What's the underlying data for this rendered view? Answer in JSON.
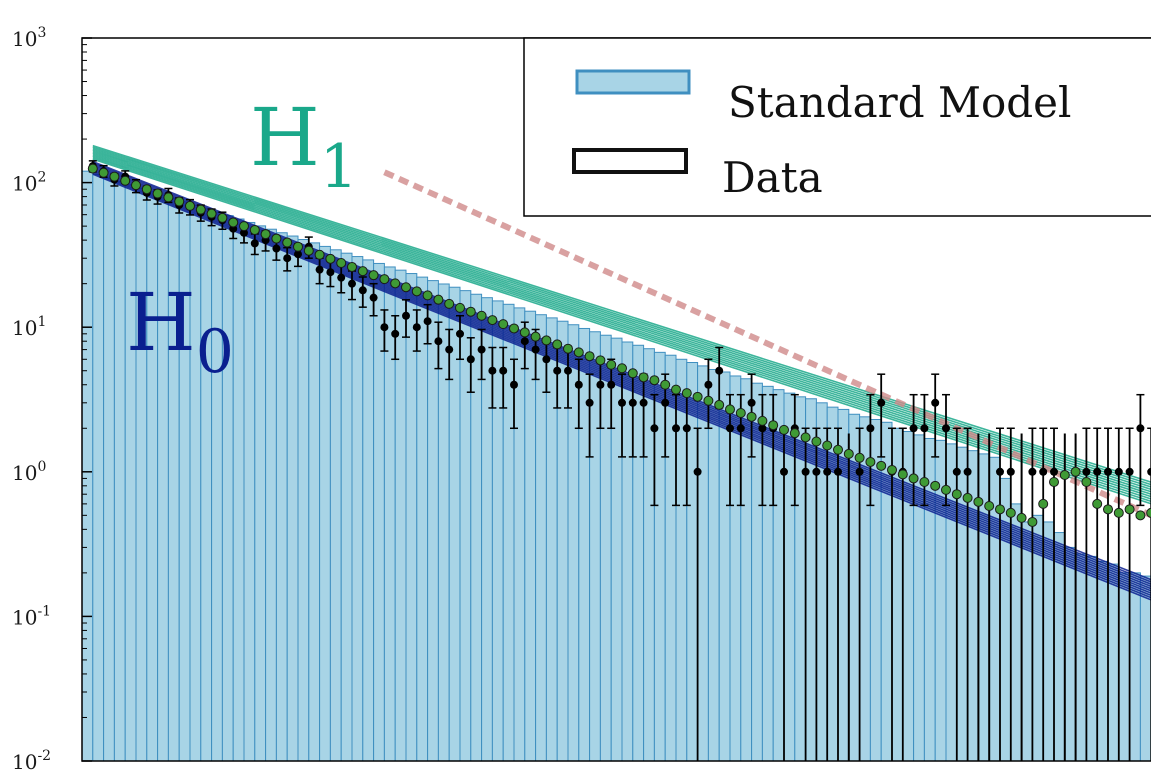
{
  "chart_data": {
    "type": "bar",
    "title": "",
    "xlabel": "",
    "ylabel": "",
    "yscale": "log",
    "ylim": [
      0.01,
      1000
    ],
    "xlim": [
      0,
      100
    ],
    "yticks": [
      {
        "value": 0.01,
        "base": "10",
        "exp": "-2"
      },
      {
        "value": 0.1,
        "base": "10",
        "exp": "-1"
      },
      {
        "value": 1,
        "base": "10",
        "exp": "0"
      },
      {
        "value": 10,
        "base": "10",
        "exp": "1"
      },
      {
        "value": 100,
        "base": "10",
        "exp": "2"
      },
      {
        "value": 1000,
        "base": "10",
        "exp": "3"
      }
    ],
    "legend": {
      "position": "top-right",
      "entries": [
        {
          "label": "Standard Model",
          "style": "filled-bar"
        },
        {
          "label": "Data",
          "style": "open-box"
        }
      ]
    },
    "annotations": [
      {
        "name": "H1",
        "base": "H",
        "sub": "1",
        "color": "#1aa88a"
      },
      {
        "name": "H0",
        "base": "H",
        "sub": "0",
        "color": "#0a1f8f"
      }
    ],
    "colors": {
      "histogram_fill": "#a8d4e6",
      "histogram_edge": "#3f8fc0",
      "data": "#000000",
      "fit_points": "#3f9a35",
      "fit_line": "#d08a8a",
      "h1_band": "#1aa88a",
      "h0_band": "#0a1f8f"
    },
    "standard_model": {
      "bin_width": 1,
      "values": [
        120.0,
        113.6,
        107.6,
        101.9,
        96.5,
        91.4,
        86.6,
        82.0,
        77.6,
        73.5,
        69.6,
        65.9,
        62.4,
        59.1,
        56.0,
        53.0,
        50.2,
        47.6,
        45.0,
        42.7,
        40.4,
        38.3,
        36.2,
        34.3,
        32.5,
        30.8,
        29.2,
        27.6,
        26.1,
        24.8,
        23.5,
        22.2,
        21.0,
        19.9,
        18.9,
        17.9,
        16.9,
        16.0,
        15.2,
        14.4,
        13.6,
        12.9,
        12.2,
        11.6,
        11.0,
        10.4,
        9.8,
        9.3,
        8.8,
        8.4,
        7.9,
        7.5,
        7.1,
        6.7,
        6.4,
        6.0,
        5.7,
        5.4,
        5.1,
        4.9,
        4.6,
        4.4,
        4.1,
        3.9,
        3.7,
        3.5,
        3.3,
        3.2,
        3.0,
        2.8,
        2.7,
        2.5,
        2.4,
        2.3,
        2.2,
        2.0,
        1.9,
        1.8,
        1.7,
        1.65,
        1.56,
        1.48,
        1.4,
        1.33,
        1.26,
        0.9,
        0.6,
        0.45,
        0.5,
        0.45,
        0.38,
        0.3,
        0.27,
        0.26,
        0.24,
        0.23,
        0.2,
        0.2,
        0.19,
        0.18
      ]
    },
    "data_points": {
      "x": [
        1,
        2,
        3,
        4,
        5,
        6,
        7,
        8,
        9,
        10,
        11,
        12,
        13,
        14,
        15,
        16,
        17,
        18,
        19,
        20,
        21,
        22,
        23,
        24,
        25,
        26,
        27,
        28,
        29,
        30,
        31,
        32,
        33,
        34,
        35,
        36,
        37,
        38,
        39,
        40,
        41,
        42,
        43,
        44,
        45,
        46,
        47,
        48,
        49,
        50,
        51,
        52,
        53,
        54,
        55,
        56,
        57,
        58,
        59,
        60,
        61,
        62,
        63,
        64,
        65,
        66,
        67,
        68,
        69,
        70,
        71,
        72,
        73,
        74,
        75,
        76,
        77,
        78,
        79,
        80,
        81,
        82,
        83,
        84,
        85,
        86,
        87,
        88,
        89,
        90,
        91,
        92,
        93,
        94,
        95,
        96,
        97,
        98,
        99
      ],
      "y": [
        130,
        120,
        105,
        110,
        95,
        85,
        80,
        82,
        70,
        68,
        62,
        58,
        55,
        48,
        45,
        38,
        40,
        35,
        30,
        32,
        36,
        25,
        24,
        22,
        20,
        18,
        16,
        10,
        9,
        12,
        10,
        11,
        8,
        7,
        9,
        6,
        7,
        5,
        5,
        4,
        8,
        7,
        6,
        5,
        5,
        4,
        3,
        4,
        4,
        3,
        3,
        3,
        2,
        3,
        2,
        2,
        1,
        4,
        5,
        2,
        2,
        3,
        2,
        2,
        1,
        2,
        1,
        1,
        1,
        1,
        0,
        1,
        2,
        3,
        1,
        1,
        2,
        2,
        3,
        2,
        1,
        1,
        0,
        0,
        1,
        1,
        0,
        1,
        1,
        1,
        0,
        0,
        1,
        1,
        1,
        1,
        1,
        2,
        1
      ]
    },
    "fit_points": {
      "x": [
        1,
        2,
        3,
        4,
        5,
        6,
        7,
        8,
        9,
        10,
        11,
        12,
        13,
        14,
        15,
        16,
        17,
        18,
        19,
        20,
        21,
        22,
        23,
        24,
        25,
        26,
        27,
        28,
        29,
        30,
        31,
        32,
        33,
        34,
        35,
        36,
        37,
        38,
        39,
        40,
        41,
        42,
        43,
        44,
        45,
        46,
        47,
        48,
        49,
        50,
        51,
        52,
        53,
        54,
        55,
        56,
        57,
        58,
        59,
        60,
        61,
        62,
        63,
        64,
        65,
        66,
        67,
        68,
        69,
        70,
        71,
        72,
        73,
        74,
        75,
        76,
        77,
        78,
        79,
        80,
        81,
        82,
        83,
        84,
        85,
        86,
        87,
        88,
        89,
        90,
        91,
        92,
        93,
        94,
        95,
        96,
        97,
        98,
        99
      ],
      "y": [
        125,
        117,
        110,
        103,
        96,
        90,
        84,
        79,
        74,
        69,
        65,
        61,
        57,
        53,
        50,
        47,
        44,
        41,
        38.5,
        36,
        33.8,
        31.7,
        29.7,
        27.8,
        26.1,
        24.4,
        22.9,
        21.5,
        20.1,
        18.9,
        17.7,
        16.6,
        15.5,
        14.5,
        13.6,
        12.8,
        12.0,
        11.2,
        10.5,
        9.8,
        9.2,
        8.6,
        8.1,
        7.6,
        7.1,
        6.7,
        6.3,
        5.9,
        5.5,
        5.2,
        4.8,
        4.5,
        4.3,
        4.0,
        3.7,
        3.5,
        3.3,
        3.1,
        2.9,
        2.7,
        2.55,
        2.4,
        2.25,
        2.1,
        1.95,
        1.85,
        1.73,
        1.62,
        1.52,
        1.42,
        1.33,
        1.25,
        1.17,
        1.1,
        1.03,
        0.96,
        0.9,
        0.85,
        0.8,
        0.75,
        0.7,
        0.66,
        0.62,
        0.58,
        0.55,
        0.52,
        0.48,
        0.45,
        0.6,
        0.85,
        0.95,
        1.0,
        0.85,
        0.6,
        0.55,
        0.52,
        0.55,
        0.5,
        0.52
      ]
    },
    "h1_band": {
      "y_start": 160,
      "y_end": 0.7,
      "x_start": 1,
      "x_end": 99
    },
    "h0_band": {
      "y_start": 125,
      "y_end": 0.15,
      "x_start": 1,
      "x_end": 99
    },
    "fit_line": {
      "y_start": 118,
      "y_end": 0.5,
      "x_start": 28,
      "x_end": 99
    }
  }
}
